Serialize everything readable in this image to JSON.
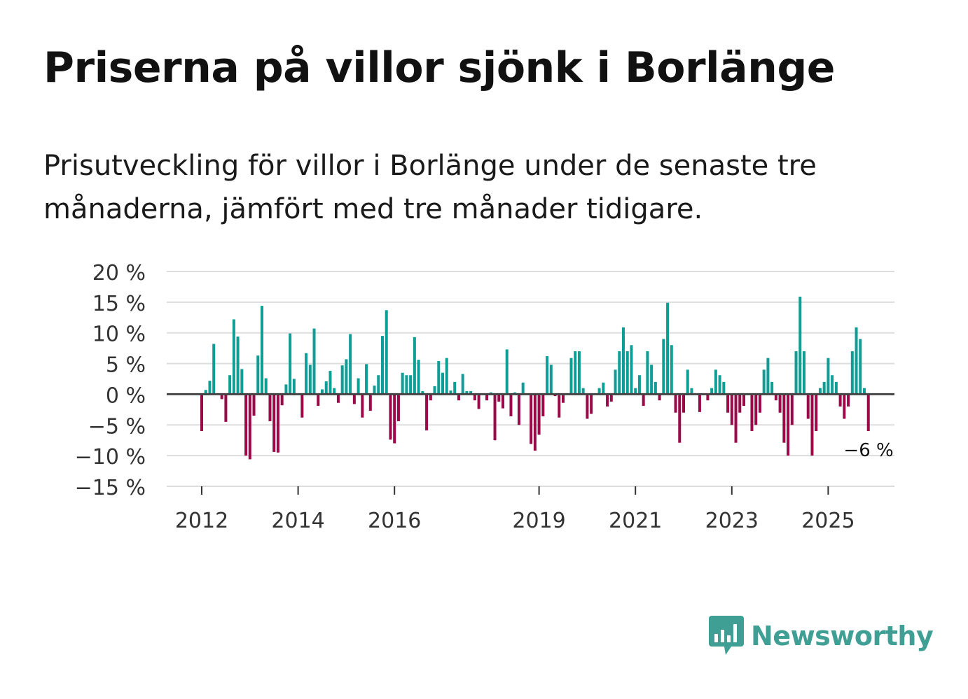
{
  "title": "Priserna på villor sjönk i Borlänge",
  "subtitle": "Prisutveckling för villor i Borlänge under de senaste tre månaderna, jämfört med tre månader tidigare.",
  "colors": {
    "positive": "#0f9e96",
    "negative": "#9b0a48",
    "grid": "#dddddd",
    "zero": "#444444",
    "logo": "#3f9f95"
  },
  "brand": {
    "name": "Newsworthy",
    "icon": "bar-chart-bubble-icon"
  },
  "chart_data": {
    "type": "bar",
    "title": "",
    "xlabel": "",
    "ylabel": "",
    "ylim": [
      -15,
      20
    ],
    "yticks": [
      20,
      15,
      10,
      5,
      0,
      -5,
      -10,
      -15
    ],
    "ytick_labels": [
      "20 %",
      "15 %",
      "10 %",
      "5 %",
      "0 %",
      "−5 %",
      "−10 %",
      "−15 %"
    ],
    "xticks": [
      2012,
      2014,
      2016,
      2019,
      2021,
      2023,
      2025
    ],
    "x_start": 2012,
    "x_step_years": 0.0833333,
    "values": [
      -6,
      0.7,
      2.2,
      8.2,
      0,
      -0.8,
      -4.5,
      3.1,
      12.2,
      9.4,
      4.1,
      -10,
      -10.6,
      -3.5,
      6.3,
      14.4,
      2.6,
      -4.4,
      -9.4,
      -9.5,
      -1.8,
      1.6,
      9.9,
      2.5,
      0,
      -3.8,
      6.7,
      4.8,
      10.7,
      -1.9,
      0.8,
      2.1,
      3.8,
      1,
      -1.4,
      4.7,
      5.7,
      9.8,
      -1.6,
      2.6,
      -3.8,
      4.9,
      -2.7,
      1.4,
      3.1,
      9.5,
      13.7,
      -7.4,
      -8,
      -4.4,
      3.5,
      3.1,
      3.1,
      9.3,
      5.6,
      0.5,
      -5.9,
      -1,
      1.3,
      5.4,
      3.5,
      5.9,
      0.6,
      2,
      -1,
      3.3,
      0.5,
      0.5,
      -1,
      -2.4,
      0,
      -1,
      0.3,
      -7.5,
      -1.2,
      -2.3,
      7.3,
      -3.6,
      0.3,
      -5,
      1.9,
      0,
      -8.1,
      -9.2,
      -6.6,
      -3.6,
      6.2,
      4.8,
      -0.3,
      -3.8,
      -1.4,
      0,
      5.9,
      7,
      7,
      1,
      -4,
      -3.2,
      0,
      1,
      1.9,
      -2,
      -1.2,
      4,
      7,
      10.9,
      7,
      8,
      1,
      3.1,
      -1.9,
      7,
      4.8,
      2,
      -1,
      9,
      14.9,
      8,
      -3,
      -7.9,
      -3,
      4,
      1,
      0,
      -2.9,
      0,
      -1,
      1,
      4,
      3.1,
      2,
      -3,
      -5,
      -7.9,
      -3,
      -1.9,
      0,
      -6,
      -5,
      -3,
      4,
      5.9,
      2,
      -1,
      -3,
      -7.9,
      -10,
      -5,
      7,
      15.9,
      7,
      -4,
      -10,
      -6,
      1,
      2,
      5.9,
      3.1,
      2,
      -2,
      -4,
      -2,
      7,
      10.9,
      9,
      1,
      -6
    ],
    "annotation": "−6 %"
  }
}
